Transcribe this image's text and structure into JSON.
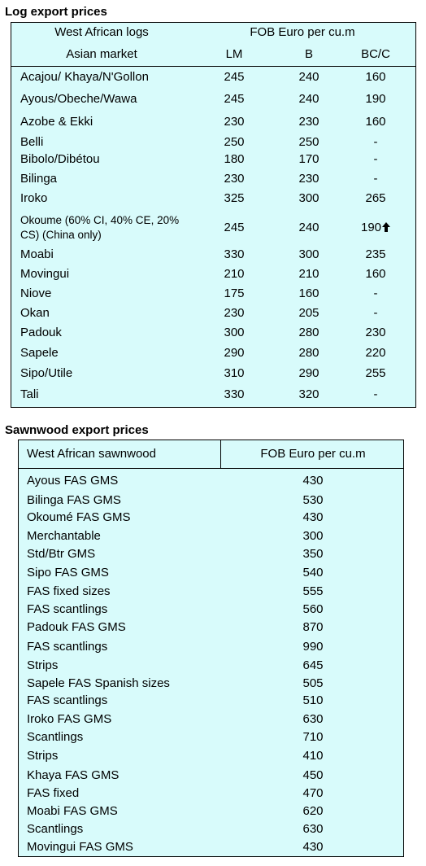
{
  "log_table": {
    "title": "Log export prices",
    "header": {
      "group_label": "West African logs",
      "price_label": "FOB Euro per cu.m",
      "market_label": "Asian market",
      "columns": [
        "LM",
        "B",
        "BC/C"
      ]
    },
    "rows": [
      [
        "Acajou/ Khaya/N'Gollon",
        245,
        240,
        160
      ],
      [
        "Ayous/Obeche/Wawa",
        245,
        240,
        190
      ],
      [
        "Azobe & Ekki",
        230,
        230,
        160
      ],
      [
        "Belli",
        250,
        250,
        "-"
      ],
      [
        "Bibolo/Dibétou",
        180,
        170,
        "-"
      ],
      [
        "Bilinga",
        230,
        230,
        "-"
      ],
      [
        "Iroko",
        325,
        300,
        265
      ],
      [
        "Okoume (60% CI, 40% CE, 20% CS) (China only)",
        245,
        240,
        190
      ],
      [
        "Moabi",
        330,
        300,
        235
      ],
      [
        "Movingui",
        210,
        210,
        160
      ],
      [
        "Niove",
        175,
        160,
        "-"
      ],
      [
        "Okan",
        230,
        205,
        "-"
      ],
      [
        "Padouk",
        300,
        280,
        230
      ],
      [
        "Sapele",
        290,
        280,
        220
      ],
      [
        "Sipo/Utile",
        310,
        290,
        255
      ],
      [
        "Tali",
        330,
        320,
        "-"
      ]
    ]
  },
  "sawnwood_table": {
    "title": "Sawnwood export prices",
    "header": {
      "group_label": "West African sawnwood",
      "price_label": "FOB Euro per cu.m"
    },
    "rows": [
      [
        "Ayous FAS GMS",
        430
      ],
      [
        "Bilinga FAS GMS",
        530
      ],
      [
        "Okoumé FAS GMS",
        430
      ],
      [
        "Merchantable",
        300
      ],
      [
        "Std/Btr GMS",
        350
      ],
      [
        "Sipo FAS GMS",
        540
      ],
      [
        "FAS fixed sizes",
        555
      ],
      [
        "FAS scantlings",
        560
      ],
      [
        "Padouk FAS GMS",
        870
      ],
      [
        "FAS scantlings",
        990
      ],
      [
        "Strips",
        645
      ],
      [
        "Sapele FAS Spanish sizes",
        505
      ],
      [
        "FAS scantlings",
        510
      ],
      [
        "Iroko FAS GMS",
        630
      ],
      [
        "Scantlings",
        710
      ],
      [
        "Strips",
        410
      ],
      [
        "Khaya FAS GMS",
        450
      ],
      [
        "FAS fixed",
        470
      ],
      [
        "Moabi FAS GMS",
        620
      ],
      [
        "Scantlings",
        630
      ],
      [
        "Movingui FAS GMS",
        430
      ]
    ]
  }
}
